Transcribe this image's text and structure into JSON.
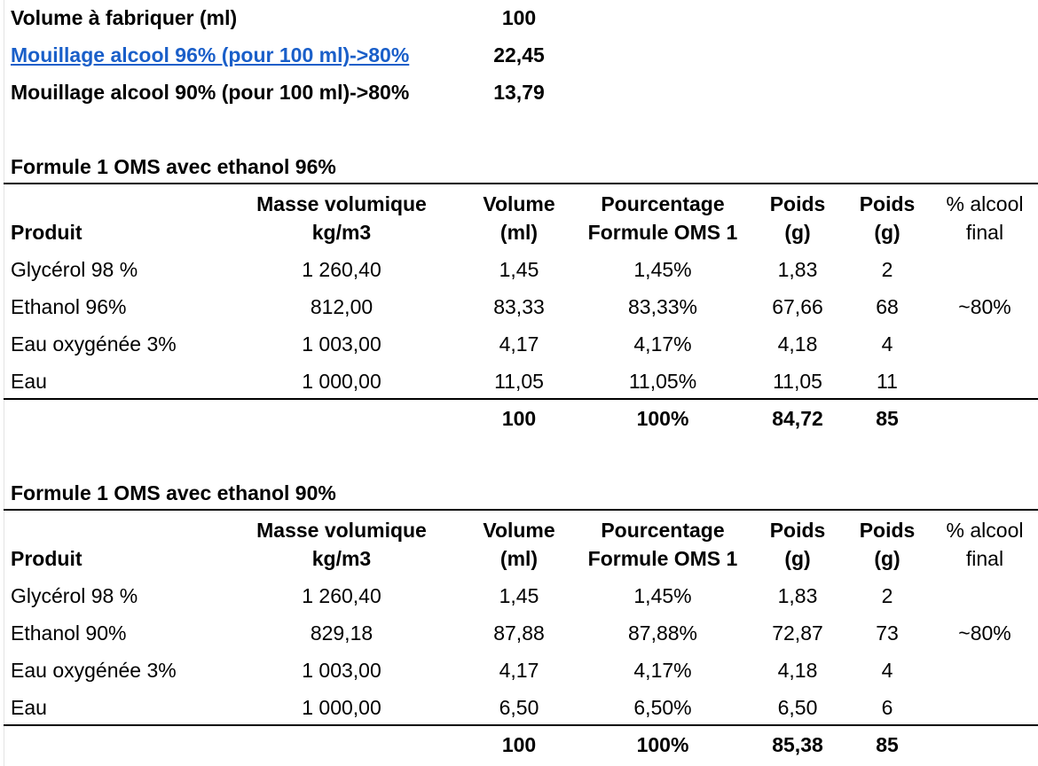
{
  "summary": {
    "volume_label": "Volume à fabriquer (ml)",
    "volume_value": "100",
    "mouillage96_label": "Mouillage alcool 96% (pour 100 ml)->80%",
    "mouillage96_value": "22,45",
    "mouillage90_label": "Mouillage alcool 90% (pour 100 ml)->80%",
    "mouillage90_value": "13,79"
  },
  "columns": {
    "produit": "Produit",
    "masse_l1": "Masse volumique",
    "masse_l2": "kg/m3",
    "volume_l1": "Volume",
    "volume_l2": "(ml)",
    "pct_l1": "Pourcentage",
    "pct_l2": "Formule OMS 1",
    "poids_l1": "Poids",
    "poids_l2": "(g)",
    "poids2_l1": "Poids",
    "poids2_l2": "(g)",
    "alc_l1": "% alcool",
    "alc_l2": "final"
  },
  "tables": [
    {
      "title": "Formule 1 OMS avec ethanol 96%",
      "rows": [
        {
          "produit": "Glycérol 98 %",
          "masse": "1 260,40",
          "volume": "1,45",
          "pct": "1,45%",
          "poids": "1,83",
          "poids_r": "2",
          "alcool": ""
        },
        {
          "produit": "Ethanol 96%",
          "masse": "812,00",
          "volume": "83,33",
          "pct": "83,33%",
          "poids": "67,66",
          "poids_r": "68",
          "alcool": "~80%"
        },
        {
          "produit": "Eau oxygénée 3%",
          "masse": "1 003,00",
          "volume": "4,17",
          "pct": "4,17%",
          "poids": "4,18",
          "poids_r": "4",
          "alcool": ""
        },
        {
          "produit": "Eau",
          "masse": "1 000,00",
          "volume": "11,05",
          "pct": "11,05%",
          "poids": "11,05",
          "poids_r": "11",
          "alcool": ""
        }
      ],
      "total": {
        "volume": "100",
        "pct": "100%",
        "poids": "84,72",
        "poids_r": "85"
      }
    },
    {
      "title": "Formule 1 OMS avec ethanol 90%",
      "rows": [
        {
          "produit": "Glycérol 98 %",
          "masse": "1 260,40",
          "volume": "1,45",
          "pct": "1,45%",
          "poids": "1,83",
          "poids_r": "2",
          "alcool": ""
        },
        {
          "produit": "Ethanol 90%",
          "masse": "829,18",
          "volume": "87,88",
          "pct": "87,88%",
          "poids": "72,87",
          "poids_r": "73",
          "alcool": "~80%"
        },
        {
          "produit": "Eau oxygénée 3%",
          "masse": "1 003,00",
          "volume": "4,17",
          "pct": "4,17%",
          "poids": "4,18",
          "poids_r": "4",
          "alcool": ""
        },
        {
          "produit": "Eau",
          "masse": "1 000,00",
          "volume": "6,50",
          "pct": "6,50%",
          "poids": "6,50",
          "poids_r": "6",
          "alcool": ""
        }
      ],
      "total": {
        "volume": "100",
        "pct": "100%",
        "poids": "85,38",
        "poids_r": "85"
      }
    }
  ]
}
